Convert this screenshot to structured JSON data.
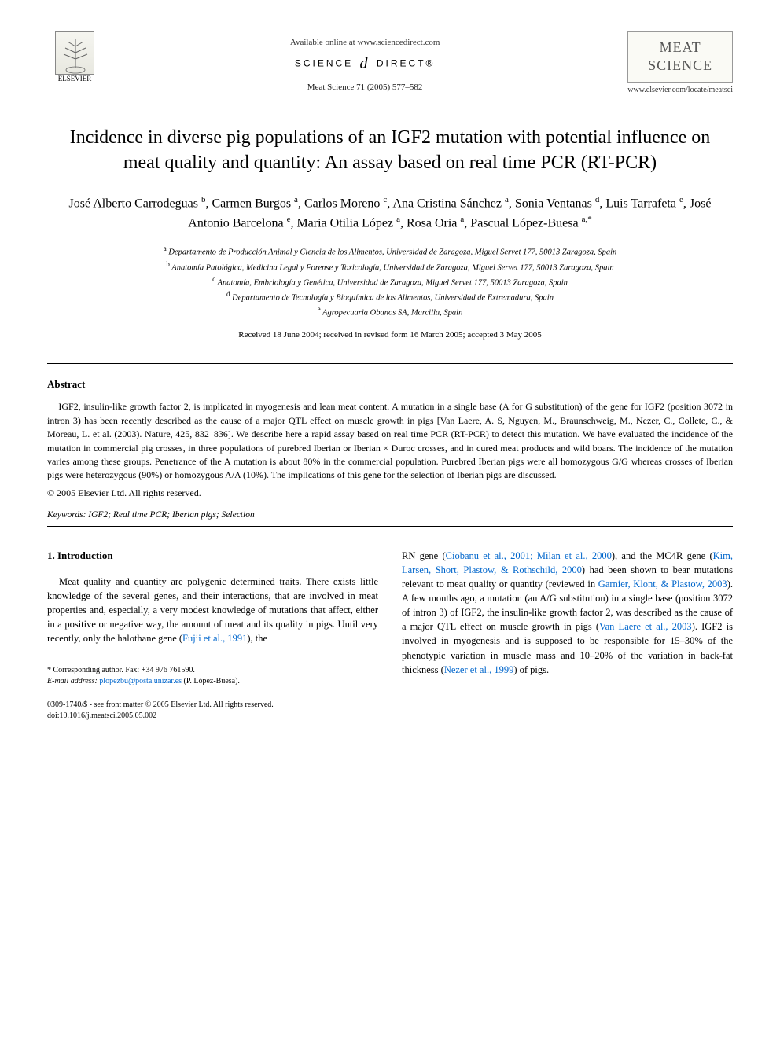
{
  "header": {
    "elsevier_label": "ELSEVIER",
    "available_online": "Available online at www.sciencedirect.com",
    "science_direct_left": "SCIENCE",
    "science_direct_right": "DIRECT®",
    "journal_ref": "Meat Science 71 (2005) 577–582",
    "journal_box_line1": "MEAT",
    "journal_box_line2": "SCIENCE",
    "journal_url": "www.elsevier.com/locate/meatsci"
  },
  "title": "Incidence in diverse pig populations of an IGF2 mutation with potential influence on meat quality and quantity: An assay based on real time PCR (RT-PCR)",
  "authors_html": "José Alberto Carrodeguas <sup>b</sup>, Carmen Burgos <sup>a</sup>, Carlos Moreno <sup>c</sup>, Ana Cristina Sánchez <sup>a</sup>, Sonia Ventanas <sup>d</sup>, Luis Tarrafeta <sup>e</sup>, José Antonio Barcelona <sup>e</sup>, Maria Otilia López <sup>a</sup>, Rosa Oria <sup>a</sup>, Pascual López-Buesa <sup>a,*</sup>",
  "affiliations": [
    {
      "sup": "a",
      "text": "Departamento de Producción Animal y Ciencia de los Alimentos, Universidad de Zaragoza, Miguel Servet 177, 50013 Zaragoza, Spain"
    },
    {
      "sup": "b",
      "text": "Anatomía Patológica, Medicina Legal y Forense y Toxicología, Universidad de Zaragoza, Miguel Servet 177, 50013 Zaragoza, Spain"
    },
    {
      "sup": "c",
      "text": "Anatomía, Embriología y Genética, Universidad de Zaragoza, Miguel Servet 177, 50013 Zaragoza, Spain"
    },
    {
      "sup": "d",
      "text": "Departamento de Tecnología y Bioquímica de los Alimentos, Universidad de Extremadura, Spain"
    },
    {
      "sup": "e",
      "text": "Agropecuaria Obanos SA, Marcilla, Spain"
    }
  ],
  "dates": "Received 18 June 2004; received in revised form 16 March 2005; accepted 3 May 2005",
  "abstract": {
    "heading": "Abstract",
    "body": "IGF2, insulin-like growth factor 2, is implicated in myogenesis and lean meat content. A mutation in a single base (A for G substitution) of the gene for IGF2 (position 3072 in intron 3) has been recently described as the cause of a major QTL effect on muscle growth in pigs [Van Laere, A. S, Nguyen, M., Braunschweig, M., Nezer, C., Collete, C., & Moreau, L. et al. (2003). Nature, 425, 832–836]. We describe here a rapid assay based on real time PCR (RT-PCR) to detect this mutation. We have evaluated the incidence of the mutation in commercial pig crosses, in three populations of purebred Iberian or Iberian × Duroc crosses, and in cured meat products and wild boars. The incidence of the mutation varies among these groups. Penetrance of the A mutation is about 80% in the commercial population. Purebred Iberian pigs were all homozygous G/G whereas crosses of Iberian pigs were heterozygous (90%) or homozygous A/A (10%). The implications of this gene for the selection of Iberian pigs are discussed.",
    "copyright": "© 2005 Elsevier Ltd. All rights reserved."
  },
  "keywords": {
    "label": "Keywords:",
    "text": "IGF2; Real time PCR; Iberian pigs; Selection"
  },
  "intro": {
    "heading": "1. Introduction",
    "left_para_start": "Meat quality and quantity are polygenic determined traits. There exists little knowledge of the several genes, and their interactions, that are involved in meat properties and, especially, a very modest knowledge of mutations that affect, either in a positive or negative way, the amount of meat and its quality in pigs. Until very recently, only the halothane gene (",
    "ref1": "Fujii et al., 1991",
    "left_para_end": "), the",
    "right_para_1": "RN gene (",
    "ref2": "Ciobanu et al., 2001; Milan et al., 2000",
    "right_para_2": "), and the MC4R gene (",
    "ref3": "Kim, Larsen, Short, Plastow, & Rothschild, 2000",
    "right_para_3": ") had been shown to bear mutations relevant to meat quality or quantity (reviewed in ",
    "ref4": "Garnier, Klont, & Plastow, 2003",
    "right_para_4": "). A few months ago, a mutation (an A/G substitution) in a single base (position 3072 of intron 3) of IGF2, the insulin-like growth factor 2, was described as the cause of a major QTL effect on muscle growth in pigs (",
    "ref5": "Van Laere et al., 2003",
    "right_para_5": "). IGF2 is involved in myogenesis and is supposed to be responsible for 15–30% of the phenotypic variation in muscle mass and 10–20% of the variation in back-fat thickness (",
    "ref6": "Nezer et al., 1999",
    "right_para_6": ") of pigs."
  },
  "footnote": {
    "corr": "* Corresponding author. Fax: +34 976 761590.",
    "email_label": "E-mail address:",
    "email": "plopezbu@posta.unizar.es",
    "email_name": "(P. López-Buesa)."
  },
  "doi": {
    "line1": "0309-1740/$ - see front matter © 2005 Elsevier Ltd. All rights reserved.",
    "line2": "doi:10.1016/j.meatsci.2005.05.002"
  },
  "colors": {
    "link": "#0066cc",
    "text": "#000000",
    "bg": "#ffffff"
  }
}
